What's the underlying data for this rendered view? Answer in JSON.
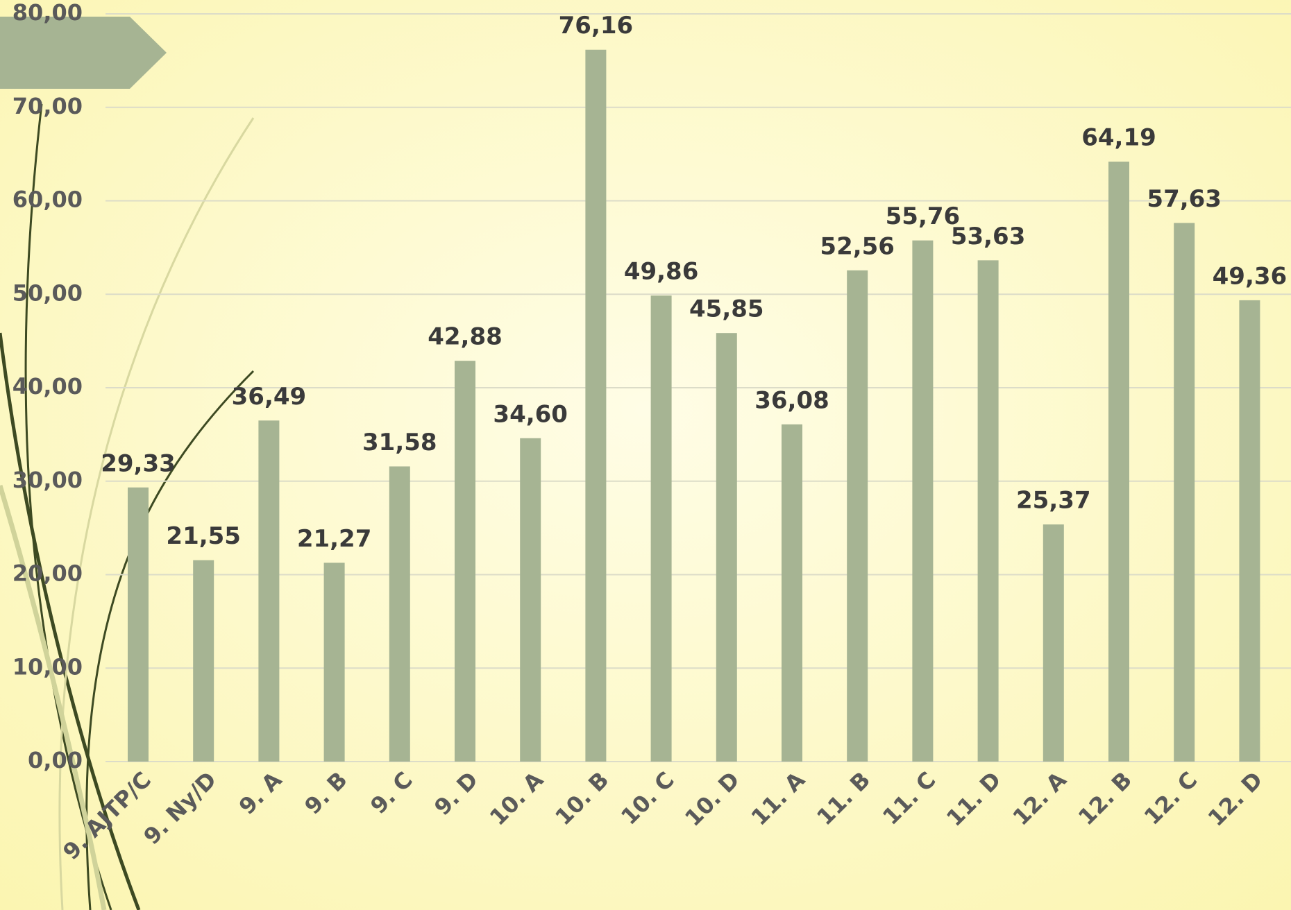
{
  "chart_data": {
    "type": "bar",
    "categories": [
      "9. AJTP/C",
      "9. Ny/D",
      "9. A",
      "9. B",
      "9. C",
      "9. D",
      "10. A",
      "10. B",
      "10. C",
      "10. D",
      "11. A",
      "11. B",
      "11. C",
      "11. D",
      "12. A",
      "12. B",
      "12. C",
      "12. D"
    ],
    "values": [
      29.33,
      21.55,
      36.49,
      21.27,
      31.58,
      42.88,
      34.6,
      76.16,
      49.86,
      45.85,
      36.08,
      52.56,
      55.76,
      53.63,
      25.37,
      64.19,
      57.63,
      49.36
    ],
    "value_labels": [
      "29,33",
      "21,55",
      "36,49",
      "21,27",
      "31,58",
      "42,88",
      "34,60",
      "76,16",
      "49,86",
      "45,85",
      "36,08",
      "52,56",
      "55,76",
      "53,63",
      "25,37",
      "64,19",
      "57,63",
      "49,36"
    ],
    "color": "#a6b493",
    "ylim": [
      0,
      80
    ],
    "yticks": [
      {
        "value": 0,
        "label": "0,00"
      },
      {
        "value": 10,
        "label": "10,00"
      },
      {
        "value": 20,
        "label": "20,00"
      },
      {
        "value": 30,
        "label": "30,00"
      },
      {
        "value": 40,
        "label": "40,00"
      },
      {
        "value": 50,
        "label": "50,00"
      },
      {
        "value": 60,
        "label": "60,00"
      },
      {
        "value": 70,
        "label": "70,00"
      },
      {
        "value": 80,
        "label": "80,00"
      }
    ],
    "grid": true
  }
}
